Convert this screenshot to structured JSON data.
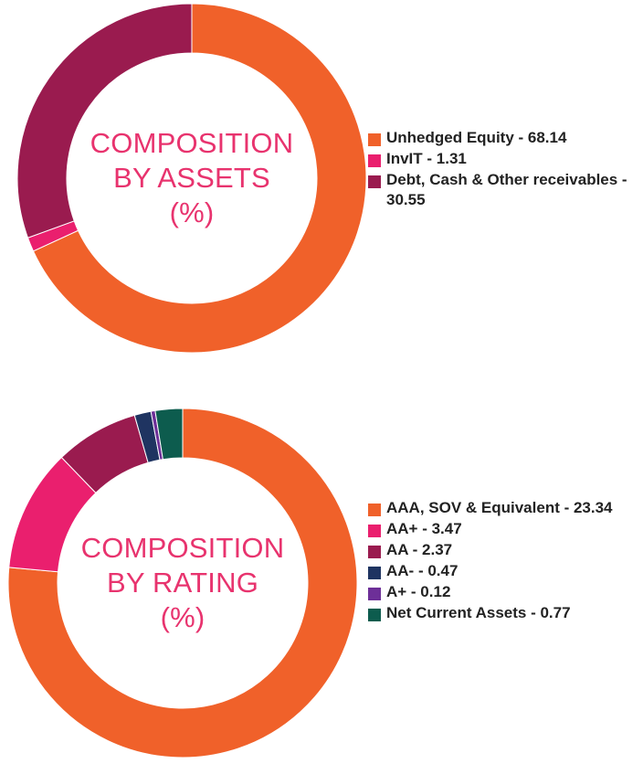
{
  "chart_data": [
    {
      "type": "pie",
      "donut": true,
      "title": [
        "COMPOSITION",
        "BY ASSETS",
        "(%)"
      ],
      "slices": [
        {
          "label": "Unhedged Equity - 68.14",
          "value": 68.14,
          "color": "#f0612a"
        },
        {
          "label": "InvIT - 1.31",
          "value": 1.31,
          "color": "#ea1f6e"
        },
        {
          "label": "Debt, Cash & Other receivables - 30.55",
          "value": 30.55,
          "color": "#9a1b4f"
        }
      ],
      "legend_position": "right"
    },
    {
      "type": "pie",
      "donut": true,
      "title": [
        "COMPOSITION",
        "BY RATING",
        "(%)"
      ],
      "slices": [
        {
          "label": "AAA, SOV & Equivalent - 23.34",
          "value": 23.34,
          "color": "#f0612a"
        },
        {
          "label": "AA+ - 3.47",
          "value": 3.47,
          "color": "#ea1f6e"
        },
        {
          "label": "AA - 2.37",
          "value": 2.37,
          "color": "#9a1b4f"
        },
        {
          "label": "AA- - 0.47",
          "value": 0.47,
          "color": "#1f3461"
        },
        {
          "label": "A+ - 0.12",
          "value": 0.12,
          "color": "#6d2f98"
        },
        {
          "label": "Net Current Assets - 0.77",
          "value": 0.77,
          "color": "#0d5c4e"
        }
      ],
      "legend_position": "right"
    }
  ]
}
